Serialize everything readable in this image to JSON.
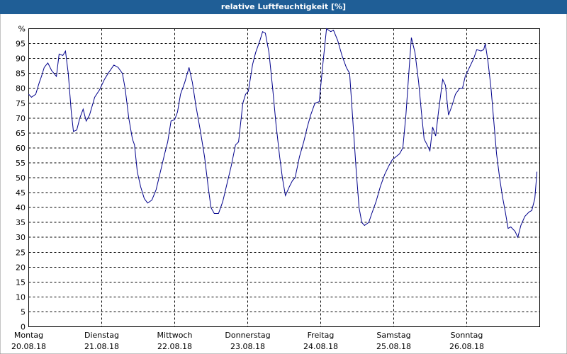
{
  "chart_data": {
    "type": "line",
    "title": "relative Luftfeuchtigkeit [%]",
    "xlim": [
      0,
      168
    ],
    "xticks": [
      {
        "value": 0,
        "label": "Montag"
      },
      {
        "value": 24,
        "label": "Dienstag"
      },
      {
        "value": 48,
        "label": "Mittwoch"
      },
      {
        "value": 72,
        "label": "Donnerstag"
      },
      {
        "value": 96,
        "label": "Freitag"
      },
      {
        "value": 120,
        "label": "Samstag"
      },
      {
        "value": 144,
        "label": "Sonntag"
      }
    ],
    "xtick_dates": [
      "20.08.18",
      "21.08.18",
      "22.08.18",
      "23.08.18",
      "24.08.18",
      "25.08.18",
      "26.08.18"
    ],
    "ylim": [
      0,
      100
    ],
    "yticks": [
      0,
      5,
      10,
      15,
      20,
      25,
      30,
      35,
      40,
      45,
      50,
      55,
      60,
      65,
      70,
      75,
      80,
      85,
      90,
      95,
      {
        "value": 100,
        "label": "%"
      }
    ],
    "grid": true,
    "series": [
      {
        "color": "#00008b",
        "x": [
          0,
          0.9,
          2.3,
          3.5,
          4.2,
          5.1,
          6.3,
          7.5,
          9.1,
          10.0,
          11.2,
          12.1,
          13.0,
          14.0,
          14.7,
          15.8,
          16.8,
          17.9,
          18.9,
          20.0,
          21.7,
          23.3,
          24.9,
          26.1,
          28.0,
          29.4,
          30.8,
          31.7,
          32.9,
          34.1,
          34.8,
          35.7,
          36.8,
          38.0,
          39.1,
          40.5,
          41.9,
          43.3,
          44.7,
          45.7,
          46.8,
          48.0,
          48.9,
          49.9,
          51.3,
          52.7,
          53.8,
          55.0,
          56.4,
          57.8,
          59.0,
          59.9,
          61.0,
          62.4,
          63.8,
          65.2,
          66.6,
          68.0,
          69.0,
          70.4,
          71.3,
          72.2,
          73.6,
          74.6,
          76.0,
          76.9,
          77.8,
          79.0,
          80.2,
          81.3,
          82.5,
          83.4,
          84.4,
          85.7,
          86.7,
          87.6,
          89.0,
          90.4,
          91.6,
          92.7,
          94.1,
          95.5,
          96.7,
          97.9,
          99.3,
          100.2,
          101.6,
          103.0,
          104.4,
          105.5,
          106.5,
          107.7,
          108.6,
          109.5,
          110.4,
          111.8,
          112.8,
          114.2,
          115.6,
          117.0,
          118.4,
          119.5,
          120.7,
          121.9,
          123.0,
          124.0,
          124.9,
          125.8,
          127.0,
          128.2,
          129.1,
          130.0,
          131.0,
          131.9,
          132.8,
          133.8,
          134.7,
          136.1,
          137.0,
          138.0,
          139.1,
          140.3,
          141.7,
          142.6,
          143.5,
          144.9,
          146.3,
          147.3,
          148.7,
          149.6,
          150.1,
          151.0,
          152.0,
          152.9,
          153.8,
          154.8,
          155.7,
          156.6,
          157.6,
          158.5,
          159.9,
          160.8,
          161.8,
          163.1,
          164.5,
          165.4,
          166.4,
          167.1
        ],
        "values": [
          78,
          77,
          78,
          82,
          84,
          87,
          88.5,
          86,
          84,
          91.5,
          91,
          92.5,
          85,
          72,
          65.5,
          66,
          70,
          73,
          69,
          71,
          77,
          79.5,
          83,
          85,
          87.8,
          87,
          85,
          80,
          70,
          63,
          61,
          52,
          47,
          43,
          41.5,
          42.5,
          46,
          52,
          58,
          62,
          69,
          69.5,
          72,
          78,
          82,
          87,
          82,
          74,
          66,
          57,
          47,
          40,
          38,
          38,
          42,
          48,
          54,
          61,
          62,
          75,
          78,
          79,
          88,
          92,
          96,
          99,
          98.5,
          92,
          80,
          68,
          57,
          50,
          44,
          47,
          49,
          50,
          57,
          62,
          67,
          71,
          75,
          75.5,
          88,
          100,
          99,
          99.5,
          96,
          91,
          87,
          85,
          70,
          52,
          40,
          35,
          34,
          35,
          38,
          42,
          47,
          51,
          54,
          56,
          57,
          58,
          60,
          71,
          84,
          97,
          92,
          82,
          72,
          63,
          61,
          59,
          67,
          64,
          72,
          83,
          81,
          71,
          74,
          78,
          80,
          80,
          84,
          87,
          90,
          93,
          92.5,
          93,
          95,
          89,
          80,
          69,
          58,
          50,
          44,
          39,
          33,
          33.5,
          32,
          30,
          34,
          37,
          38.5,
          39,
          43,
          52
        ]
      }
    ]
  }
}
